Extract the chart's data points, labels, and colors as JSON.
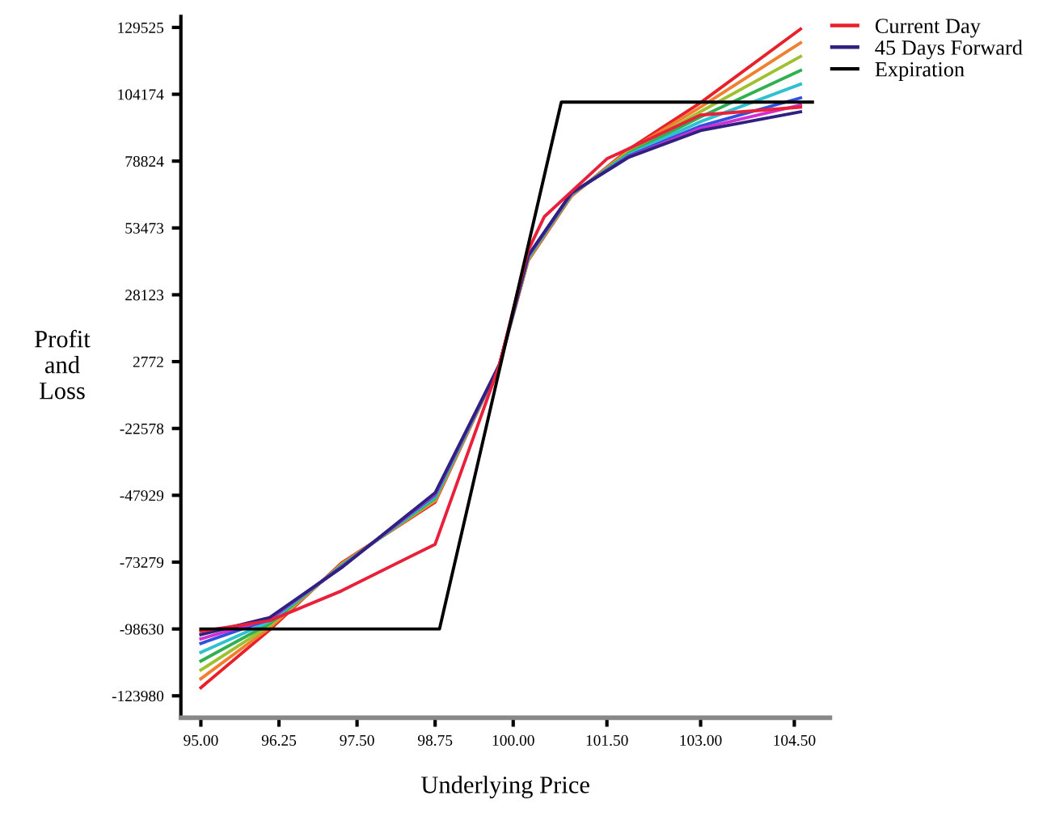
{
  "chart_data": {
    "type": "line",
    "xlabel": "Underlying Price",
    "ylabel": "Profit\nand\nLoss",
    "xlim": [
      94.68,
      105.07
    ],
    "ylim": [
      -132300,
      133670
    ],
    "xticks": [
      {
        "value": 95,
        "label": "95.00"
      },
      {
        "value": 96.25,
        "label": "96.25"
      },
      {
        "value": 97.5,
        "label": "97.50"
      },
      {
        "value": 98.75,
        "label": "98.75"
      },
      {
        "value": 100,
        "label": "100.00"
      },
      {
        "value": 101.5,
        "label": "101.50"
      },
      {
        "value": 103,
        "label": "103.00"
      },
      {
        "value": 104.5,
        "label": "104.50"
      }
    ],
    "yticks": [
      129525,
      104174,
      78824,
      53473,
      28123,
      2772,
      -22578,
      -47929,
      -73279,
      -98630,
      -123980
    ],
    "grid": false,
    "legend": "top right",
    "marker": "none",
    "line_style": "solid",
    "series": [
      {
        "name": "Current Day",
        "color": "#e8202a",
        "x": [
          95,
          96.1,
          97.25,
          98.75,
          99.78,
          100.24,
          100.93,
          101.85,
          103,
          104.6
        ],
        "values": [
          -120900,
          -99000,
          -73600,
          -50500,
          1600,
          41200,
          65500,
          83300,
          101000,
          128900
        ]
      },
      {
        "color": "#f08030",
        "x": [
          95,
          96.1,
          97.25,
          98.75,
          99.78,
          100.24,
          100.93,
          101.85,
          103,
          104.6
        ],
        "values": [
          -117500,
          -98200,
          -74000,
          -50000,
          1600,
          41500,
          65700,
          82800,
          99300,
          123700
        ]
      },
      {
        "color": "#a0c030",
        "x": [
          95,
          96.1,
          97.25,
          98.75,
          99.78,
          100.24,
          100.93,
          101.85,
          103,
          104.6
        ],
        "values": [
          -114200,
          -97400,
          -74300,
          -49500,
          1600,
          41800,
          65900,
          82300,
          97600,
          118500
        ]
      },
      {
        "color": "#30b050",
        "x": [
          95,
          96.1,
          97.25,
          98.75,
          99.78,
          100.24,
          100.93,
          101.85,
          103,
          104.6
        ],
        "values": [
          -110800,
          -96600,
          -74600,
          -49000,
          1600,
          42100,
          66100,
          81800,
          95600,
          113200
        ]
      },
      {
        "color": "#30c0d0",
        "x": [
          95,
          96.1,
          97.25,
          98.75,
          99.78,
          100.24,
          100.93,
          101.85,
          103,
          104.6
        ],
        "values": [
          -107500,
          -95800,
          -74900,
          -48500,
          1600,
          42400,
          66300,
          81300,
          93800,
          108000
        ]
      },
      {
        "color": "#3050e0",
        "x": [
          95,
          96.1,
          97.25,
          98.75,
          99.78,
          100.24,
          100.93,
          101.85,
          103,
          104.6
        ],
        "values": [
          -104100,
          -95000,
          -75100,
          -47800,
          1600,
          42700,
          66500,
          80800,
          92100,
          102800
        ]
      },
      {
        "color": "#d030d0",
        "x": [
          95,
          96.1,
          97.25,
          98.75,
          99.78,
          100.24,
          100.93,
          101.85,
          103,
          104.6
        ],
        "values": [
          -102400,
          -94700,
          -75300,
          -47400,
          1600,
          42900,
          66600,
          80500,
          91200,
          100100
        ]
      },
      {
        "name": "45 Days Forward",
        "color": "#302080",
        "x": [
          95,
          96.1,
          97.25,
          98.75,
          99.78,
          100.24,
          100.93,
          101.85,
          103,
          104.6
        ],
        "values": [
          -100800,
          -94300,
          -75400,
          -47000,
          1600,
          43000,
          66700,
          80300,
          90400,
          97500
        ]
      },
      {
        "color": "#e8203a",
        "x": [
          95,
          96.1,
          97.25,
          98.75,
          99.78,
          100.24,
          100.5,
          101.5,
          103,
          104.6
        ],
        "values": [
          -99500,
          -95500,
          -84200,
          -66500,
          1600,
          45000,
          57800,
          79700,
          96300,
          99300
        ]
      },
      {
        "name": "Expiration",
        "color": "#000000",
        "x": [
          95,
          98.82,
          100.77,
          104.79
        ],
        "values": [
          -98630,
          -98630,
          101200,
          101200
        ]
      }
    ]
  }
}
